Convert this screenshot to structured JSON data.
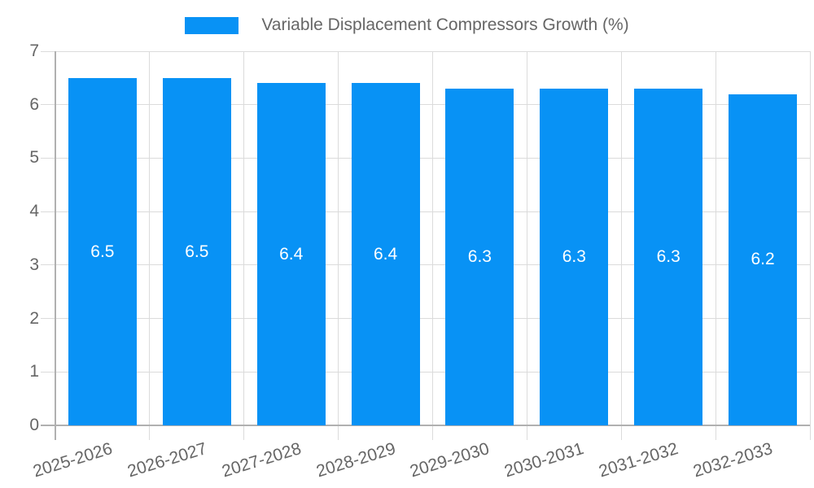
{
  "chart_data": {
    "type": "bar",
    "title": "Variable Displacement Compressors Growth (%)",
    "legend": {
      "position": "top",
      "label": "Variable Displacement Compressors Growth (%)"
    },
    "categories": [
      "2025-2026",
      "2026-2027",
      "2027-2028",
      "2028-2029",
      "2029-2030",
      "2030-2031",
      "2031-2032",
      "2032-2033"
    ],
    "values": [
      6.5,
      6.5,
      6.4,
      6.4,
      6.3,
      6.3,
      6.3,
      6.2
    ],
    "value_labels": [
      "6.5",
      "6.5",
      "6.4",
      "6.4",
      "6.3",
      "6.3",
      "6.3",
      "6.2"
    ],
    "xlabel": "",
    "ylabel": "",
    "ylim": [
      0,
      7
    ],
    "yticks": [
      0,
      1,
      2,
      3,
      4,
      5,
      6,
      7
    ],
    "grid": true,
    "x_tick_rotation_deg": -17,
    "colors": {
      "bar": "#0892F5",
      "bar_label": "#FFFFFF",
      "grid": "#DBDBDB",
      "axis": "#B0B0B0",
      "text": "#666666",
      "background": "#FFFFFF"
    }
  }
}
